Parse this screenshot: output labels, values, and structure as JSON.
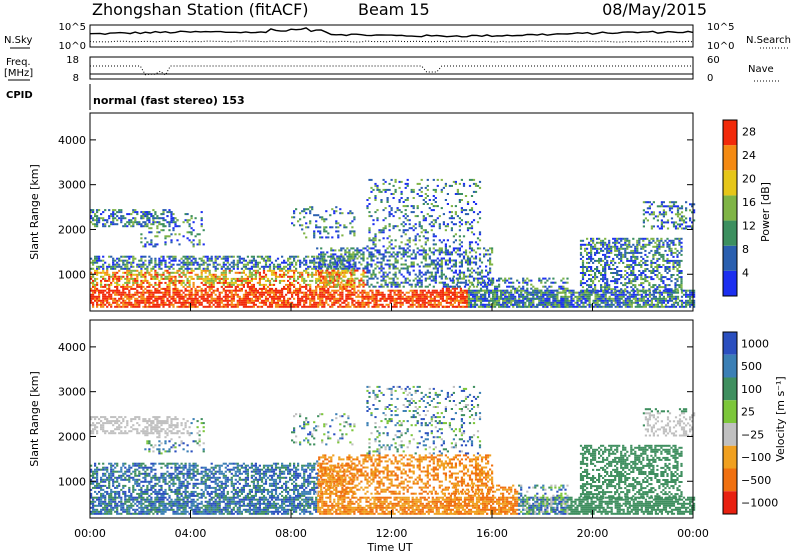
{
  "header": {
    "station": "Zhongshan Station (fitACF)",
    "beam": "Beam 15",
    "date": "08/May/2015",
    "cpid_label": "CPID",
    "cpid_value": "normal (fast stereo) 153"
  },
  "sky_panel": {
    "left_label": "N.Sky",
    "right_label": "N.Search",
    "left_ticks": [
      "10^5",
      "10^0"
    ],
    "right_ticks": [
      "10^5",
      "10^0"
    ]
  },
  "freq_panel": {
    "left_label_1": "Freq.",
    "left_label_2": "[MHz]",
    "left_ticks": [
      18,
      8
    ],
    "right_label": "Nave",
    "right_ticks": [
      60,
      0
    ]
  },
  "chart_data": [
    {
      "type": "heatmap",
      "panel": "power",
      "ylabel": "Slant Range [km]",
      "ylim": [
        180,
        4600
      ],
      "yticks": [
        1000,
        2000,
        3000,
        4000
      ],
      "xlim": [
        0,
        24
      ],
      "colorbar": {
        "label": "Power [dB]",
        "ticks": [
          4,
          8,
          12,
          16,
          20,
          24,
          28
        ],
        "range": [
          0,
          30
        ],
        "colors": [
          "#1c2ff0",
          "#2a5faf",
          "#3c8f5f",
          "#7fb445",
          "#e6c619",
          "#f48a12",
          "#f22a0a"
        ]
      }
    },
    {
      "type": "heatmap",
      "panel": "velocity",
      "ylabel": "Slant Range [km]",
      "ylim": [
        180,
        4600
      ],
      "yticks": [
        1000,
        2000,
        3000,
        4000
      ],
      "xlim": [
        0,
        24
      ],
      "colorbar": {
        "label": "Velocity [m s⁻¹]",
        "ticks": [
          "1000",
          "500",
          "100",
          "25",
          "−25",
          "−100",
          "−500",
          "−1000"
        ],
        "colors": [
          "#2b4fbf",
          "#3b7fb5",
          "#3f8f5f",
          "#7cc63a",
          "#c0c0c0",
          "#f0a020",
          "#f07010",
          "#e82010"
        ]
      }
    }
  ],
  "time_axis": {
    "label": "Time UT",
    "ticks": [
      "00:00",
      "04:00",
      "08:00",
      "12:00",
      "16:00",
      "20:00",
      "00:00"
    ]
  }
}
